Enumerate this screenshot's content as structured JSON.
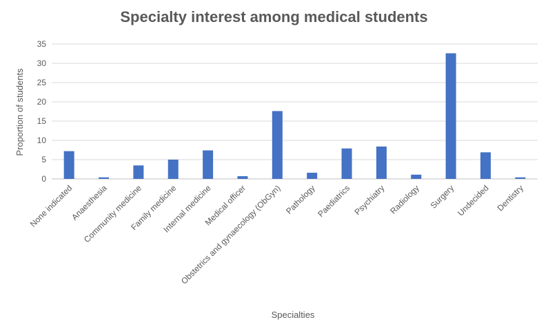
{
  "chart_data": {
    "type": "bar",
    "title": "Specialty interest among medical students",
    "xlabel": "Specialties",
    "ylabel": "Proportion of students",
    "ylim": [
      0,
      35
    ],
    "yticks": [
      0,
      5,
      10,
      15,
      20,
      25,
      30,
      35
    ],
    "grid": true,
    "legend": "none",
    "bar_color": "#4472C4",
    "categories": [
      "None indicated",
      "Anaesthesia",
      "Community medicine",
      "Family medicine",
      "Internal medicine",
      "Medical officer",
      "Obstetrics and gynaecology (ObGyn)",
      "Pathology",
      "Paediatrics",
      "Psychiatry",
      "Radiology",
      "Surgery",
      "Undecided",
      "Dentistry"
    ],
    "values": [
      7.2,
      0.4,
      3.5,
      5.0,
      7.4,
      0.7,
      17.6,
      1.6,
      7.9,
      8.4,
      1.1,
      32.6,
      6.9,
      0.4
    ]
  }
}
